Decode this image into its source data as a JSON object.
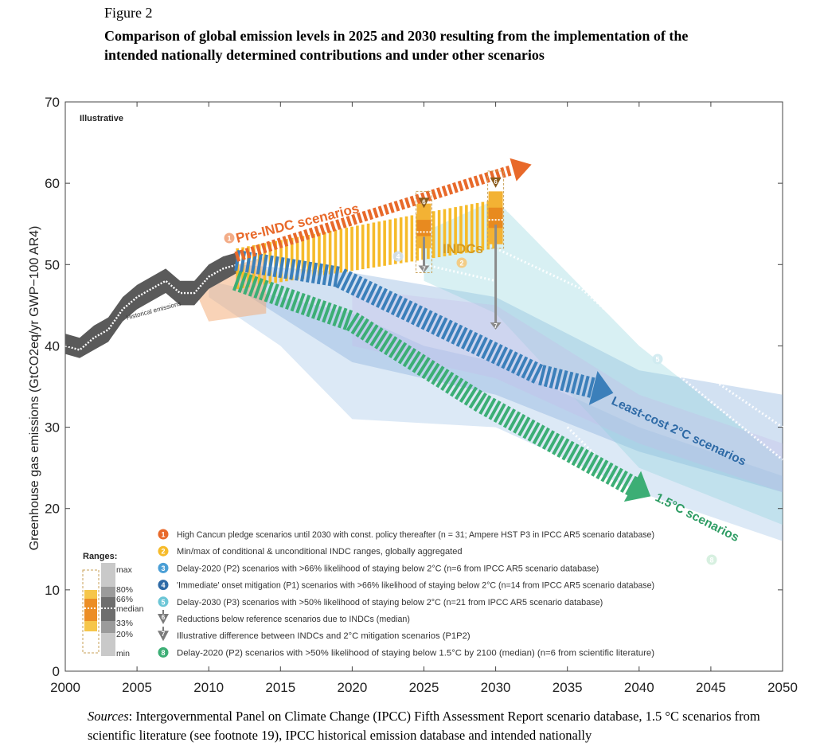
{
  "figure_label": "Figure 2",
  "title": "Comparison of global emission levels in 2025 and 2030 resulting from the implementation of the intended nationally determined contributions and under other scenarios",
  "sources_label": "Sources",
  "sources_text": ": Intergovernmental Panel on Climate Change (IPCC) Fifth Assessment Report scenario database, 1.5 °C scenarios from scientific literature (see footnote 19), IPCC historical emission database and intended nationally",
  "chart_data": {
    "type": "area",
    "ylabel": "Greenhouse gas emissions (GtCO2eq/yr GWP−100 AR4)",
    "xlabel": "",
    "xlim": [
      2000,
      2050
    ],
    "ylim": [
      0,
      70
    ],
    "x_ticks": [
      "2000",
      "2005",
      "2010",
      "2015",
      "2020",
      "2025",
      "2030",
      "2035",
      "2040",
      "2045",
      "2050"
    ],
    "y_ticks": [
      "0",
      "10",
      "20",
      "30",
      "40",
      "50",
      "60",
      "70"
    ],
    "corner_label": "Illustrative",
    "historical_label": "Historical emissions",
    "historical": {
      "x": [
        2000,
        2001,
        2002,
        2003,
        2004,
        2005,
        2006,
        2007,
        2008,
        2009,
        2010,
        2011,
        2012
      ],
      "median": [
        40,
        39.5,
        41,
        42,
        44.5,
        46,
        47,
        48,
        46.5,
        46.5,
        48.5,
        49.5,
        50
      ],
      "min": [
        39,
        38.5,
        39.5,
        40.5,
        43,
        44.5,
        45.5,
        46.5,
        45,
        45,
        47,
        48,
        49
      ],
      "max": [
        41.5,
        41,
        42.5,
        43.5,
        46,
        47.5,
        48.5,
        49.5,
        48,
        48,
        50,
        51,
        51.5
      ]
    },
    "scenarios": [
      {
        "id": "1",
        "name": "Pre-INDC scenarios",
        "color": "#e8692a",
        "x": [
          2012,
          2030
        ],
        "y": [
          50.5,
          61
        ]
      },
      {
        "id": "2",
        "name": "INDCs",
        "color": "#f6bb2a",
        "x": [
          2012,
          2030
        ],
        "y_low": [
          47,
          52
        ],
        "y_high": [
          52,
          58
        ]
      },
      {
        "id": "4",
        "name": "Least-cost 2°C scenarios",
        "color": "#3b7fba",
        "x": [
          2012,
          2020,
          2030,
          2037
        ],
        "y": [
          49.5,
          47,
          39,
          35
        ]
      },
      {
        "id": "8",
        "name": "1.5°C scenarios",
        "color": "#3cae75",
        "x": [
          2012,
          2020,
          2030,
          2040
        ],
        "y": [
          48,
          43,
          32,
          21
        ]
      }
    ],
    "range_bars": [
      {
        "year": 2025,
        "min": 49,
        "p20": 52,
        "p33": 53.5,
        "median": 54,
        "p66": 55.5,
        "p80": 57.5,
        "max": 59,
        "ref_reduction_to": 50,
        "mitigation_gap_to": 49
      },
      {
        "year": 2030,
        "min": 52,
        "p20": 52.5,
        "p33": 54.5,
        "median": 55.5,
        "p66": 57,
        "p80": 59,
        "max": 61.5,
        "ref_reduction_to": 57,
        "mitigation_gap_to": 42
      }
    ],
    "legend_title": "Ranges:",
    "range_key_labels": [
      "max",
      "80%",
      "66%",
      "median",
      "33%",
      "20%",
      "min"
    ],
    "legend": [
      {
        "marker": "1",
        "color": "#e8692a",
        "text": "High Cancun pledge scenarios until 2030 with const. policy thereafter (n = 31; Ampere HST P3 in IPCC AR5 scenario database)"
      },
      {
        "marker": "2",
        "color": "#f6bb2a",
        "text": "Min/max of conditional & unconditional INDC ranges, globally aggregated"
      },
      {
        "marker": "3",
        "color": "#4a9fd6",
        "text": "Delay-2020 (P2) scenarios with >66% likelihood of staying below 2°C (n=6 from IPCC AR5 scenario database)"
      },
      {
        "marker": "4",
        "color": "#2e6aa6",
        "text": "'Immediate' onset mitigation (P1) scenarios with >66% likelihood of staying below 2°C (n=14 from IPCC AR5 scenario database)"
      },
      {
        "marker": "5",
        "color": "#6cc6d6",
        "text": "Delay-2030 (P3) scenarios with >50% likelihood of staying below 2°C (n=21 from IPCC AR5 scenario database)"
      },
      {
        "marker": "6",
        "color": "#777777",
        "text": "Reductions below reference scenarios due to INDCs (median)"
      },
      {
        "marker": "7",
        "color": "#777777",
        "text": "Illustrative difference between INDCs and 2°C mitigation scenarios (P1P2)"
      },
      {
        "marker": "8",
        "color": "#3cae75",
        "text": "Delay-2020 (P2) scenarios with >50% likelihood of staying below 1.5°C by 2100 (median) (n=6 from scientific literature)"
      }
    ]
  }
}
